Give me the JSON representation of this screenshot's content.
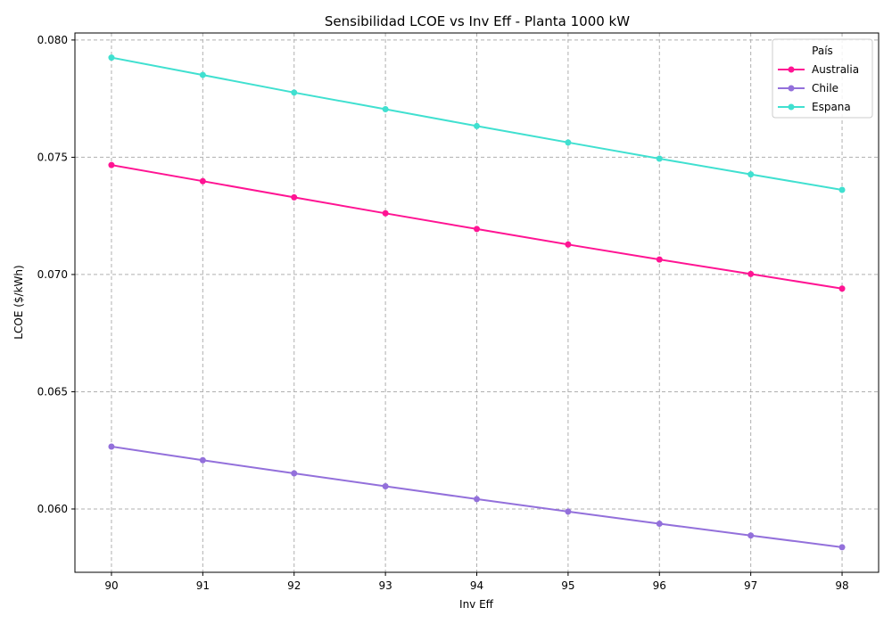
{
  "chart_data": {
    "type": "line",
    "title": "Sensibilidad LCOE vs Inv Eff - Planta 1000 kW",
    "xlabel": "Inv Eff",
    "ylabel": "LCOE ($/kWh)",
    "x": [
      90,
      91,
      92,
      93,
      94,
      95,
      96,
      97,
      98
    ],
    "xlim": [
      89.6,
      98.4
    ],
    "ylim": [
      0.0573,
      0.0803
    ],
    "yticks": [
      "0.060",
      "0.065",
      "0.070",
      "0.075",
      "0.080"
    ],
    "ytick_values": [
      0.06,
      0.065,
      0.07,
      0.075,
      0.08
    ],
    "grid": true,
    "legend": {
      "title": "País",
      "position": "top-right"
    },
    "series": [
      {
        "name": "Australia",
        "color": "#ff1493",
        "values": [
          0.07467,
          0.07398,
          0.07329,
          0.07261,
          0.07194,
          0.07128,
          0.07064,
          0.07002,
          0.0694
        ]
      },
      {
        "name": "Chile",
        "color": "#9370db",
        "values": [
          0.06266,
          0.06208,
          0.06152,
          0.06097,
          0.06042,
          0.05989,
          0.05937,
          0.05887,
          0.05837
        ]
      },
      {
        "name": "Espana",
        "color": "#40e0d0",
        "values": [
          0.07925,
          0.07851,
          0.07776,
          0.07705,
          0.07633,
          0.07563,
          0.07494,
          0.07427,
          0.07361
        ]
      }
    ]
  }
}
